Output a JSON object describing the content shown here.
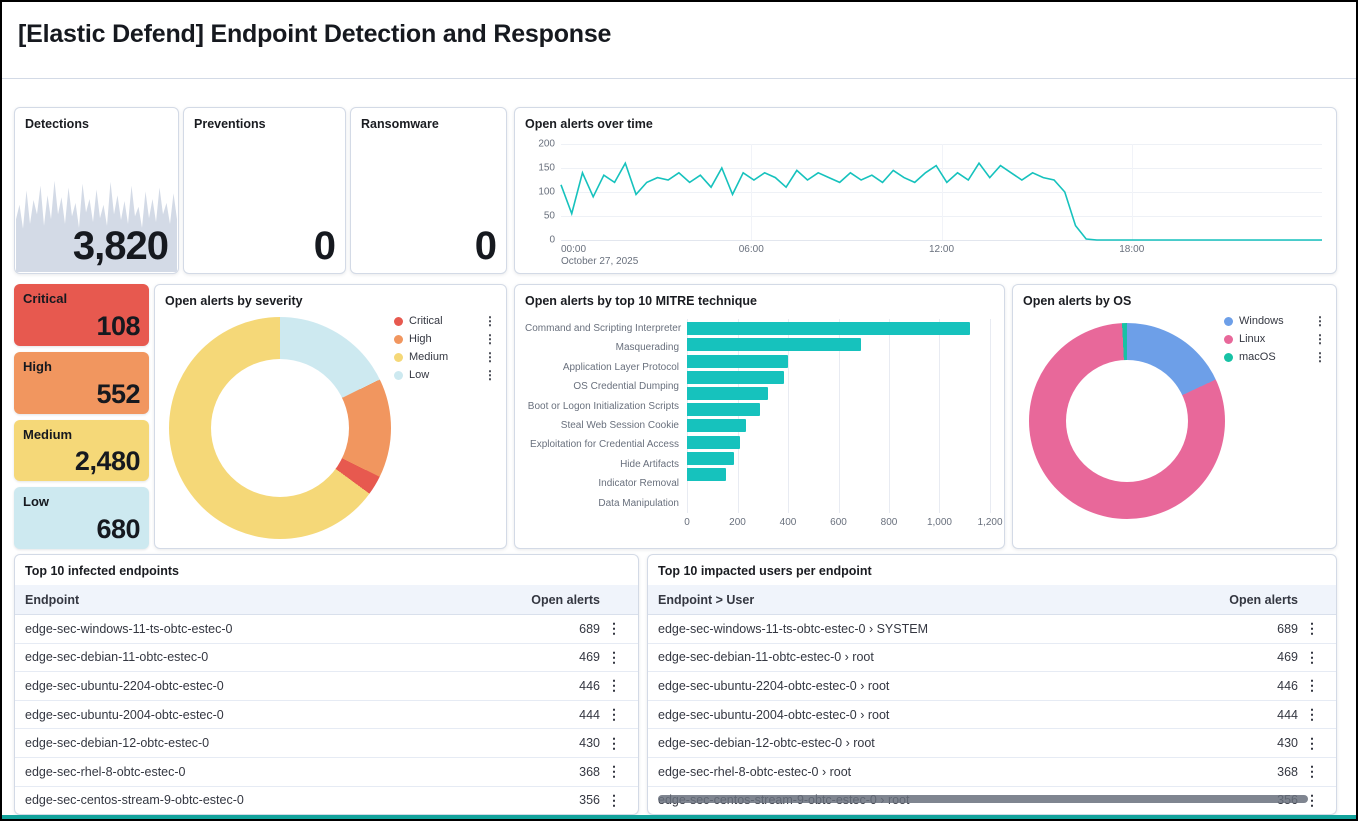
{
  "page": {
    "title": "[Elastic Defend] Endpoint Detection and Response"
  },
  "icons": {
    "row_menu": "⋮",
    "legend_menu": "⋮"
  },
  "stat_panels": {
    "detections": {
      "title": "Detections",
      "value": "3,820"
    },
    "preventions": {
      "title": "Preventions",
      "value": "0"
    },
    "ransomware": {
      "title": "Ransomware",
      "value": "0"
    }
  },
  "severity_tiles": [
    {
      "label": "Critical",
      "value": "108",
      "color": "#e7594f"
    },
    {
      "label": "High",
      "value": "552",
      "color": "#f1965f"
    },
    {
      "label": "Medium",
      "value": "2,480",
      "color": "#f5d878"
    },
    {
      "label": "Low",
      "value": "680",
      "color": "#cde9f0"
    }
  ],
  "chart_data": [
    {
      "id": "detections_sparkline",
      "type": "area",
      "title": "Detections trend",
      "color": "#d3dae6",
      "values": [
        55,
        70,
        45,
        85,
        50,
        75,
        60,
        90,
        48,
        80,
        55,
        95,
        60,
        78,
        50,
        88,
        58,
        72,
        46,
        92,
        62,
        76,
        52,
        86,
        56,
        70,
        48,
        94,
        60,
        80,
        54,
        74,
        50,
        90,
        58,
        68,
        46,
        84,
        56,
        76,
        52,
        88,
        60,
        72,
        50,
        82,
        55
      ]
    },
    {
      "id": "alerts_over_time",
      "type": "line",
      "title": "Open alerts over time",
      "color": "#16c2bd",
      "ylim": [
        0,
        200
      ],
      "yticks": [
        "200",
        "150",
        "100",
        "50",
        "0"
      ],
      "xticks": [
        "00:00",
        "06:00",
        "12:00",
        "18:00"
      ],
      "x_first_tick_sub": "October 27, 2025",
      "values": [
        115,
        55,
        140,
        90,
        135,
        120,
        160,
        95,
        120,
        130,
        125,
        140,
        120,
        135,
        110,
        150,
        95,
        140,
        125,
        140,
        130,
        110,
        145,
        125,
        140,
        130,
        120,
        140,
        125,
        135,
        120,
        145,
        130,
        120,
        140,
        155,
        120,
        140,
        125,
        160,
        130,
        155,
        140,
        125,
        140,
        130,
        125,
        100,
        30,
        2,
        0,
        0,
        0,
        0,
        0,
        0,
        0,
        0,
        0,
        0,
        0,
        0,
        0,
        0,
        0,
        0,
        0,
        0,
        0,
        0,
        0,
        0
      ]
    },
    {
      "id": "alerts_by_severity",
      "type": "pie",
      "title": "Open alerts by severity",
      "legend": [
        {
          "label": "Critical",
          "color": "#e7594f"
        },
        {
          "label": "High",
          "color": "#f1965f"
        },
        {
          "label": "Medium",
          "color": "#f5d878"
        },
        {
          "label": "Low",
          "color": "#cde9f0"
        }
      ],
      "values": {
        "Critical": 108,
        "High": 552,
        "Medium": 2480,
        "Low": 680
      },
      "draw_order": [
        "Low",
        "High",
        "Critical",
        "Medium"
      ]
    },
    {
      "id": "alerts_by_mitre",
      "type": "bar",
      "orientation": "horizontal",
      "title": "Open alerts by top 10 MITRE technique",
      "color": "#16c2bd",
      "categories": [
        "Command and Scripting Interpreter",
        "Masquerading",
        "Application Layer Protocol",
        "OS Credential Dumping",
        "Boot or Logon Initialization Scripts",
        "Steal Web Session Cookie",
        "Exploitation for Credential Access",
        "Hide Artifacts",
        "Indicator Removal",
        "Data Manipulation"
      ],
      "values": [
        1120,
        690,
        400,
        385,
        320,
        290,
        235,
        210,
        185,
        155
      ],
      "xlim": [
        0,
        1200
      ],
      "xticks": [
        "0",
        "200",
        "400",
        "600",
        "800",
        "1,000",
        "1,200"
      ]
    },
    {
      "id": "alerts_by_os",
      "type": "pie",
      "title": "Open alerts by OS",
      "legend": [
        {
          "label": "Windows",
          "color": "#6d9fe8"
        },
        {
          "label": "Linux",
          "color": "#e8689a"
        },
        {
          "label": "macOS",
          "color": "#17c2a5"
        }
      ],
      "values": {
        "Windows": 689,
        "Linux": 3100,
        "macOS": 31
      },
      "draw_order": [
        "Windows",
        "Linux",
        "macOS"
      ]
    }
  ],
  "tables": {
    "infected": {
      "title": "Top 10 infected endpoints",
      "columns": [
        "Endpoint",
        "Open alerts"
      ],
      "rows": [
        {
          "endpoint": "edge-sec-windows-11-ts-obtc-estec-0",
          "alerts": "689"
        },
        {
          "endpoint": "edge-sec-debian-11-obtc-estec-0",
          "alerts": "469"
        },
        {
          "endpoint": "edge-sec-ubuntu-2204-obtc-estec-0",
          "alerts": "446"
        },
        {
          "endpoint": "edge-sec-ubuntu-2004-obtc-estec-0",
          "alerts": "444"
        },
        {
          "endpoint": "edge-sec-debian-12-obtc-estec-0",
          "alerts": "430"
        },
        {
          "endpoint": "edge-sec-rhel-8-obtc-estec-0",
          "alerts": "368"
        },
        {
          "endpoint": "edge-sec-centos-stream-9-obtc-estec-0",
          "alerts": "356"
        }
      ]
    },
    "impacted": {
      "title": "Top 10 impacted users per endpoint",
      "columns": [
        "Endpoint > User",
        "Open alerts"
      ],
      "rows": [
        {
          "endpoint": "edge-sec-windows-11-ts-obtc-estec-0 › SYSTEM",
          "alerts": "689"
        },
        {
          "endpoint": "edge-sec-debian-11-obtc-estec-0 › root",
          "alerts": "469"
        },
        {
          "endpoint": "edge-sec-ubuntu-2204-obtc-estec-0 › root",
          "alerts": "446"
        },
        {
          "endpoint": "edge-sec-ubuntu-2004-obtc-estec-0 › root",
          "alerts": "444"
        },
        {
          "endpoint": "edge-sec-debian-12-obtc-estec-0 › root",
          "alerts": "430"
        },
        {
          "endpoint": "edge-sec-rhel-8-obtc-estec-0 › root",
          "alerts": "368"
        },
        {
          "endpoint": "edge-sec-centos-stream-9-obtc-estec-0 › root",
          "alerts": "356"
        }
      ]
    }
  }
}
